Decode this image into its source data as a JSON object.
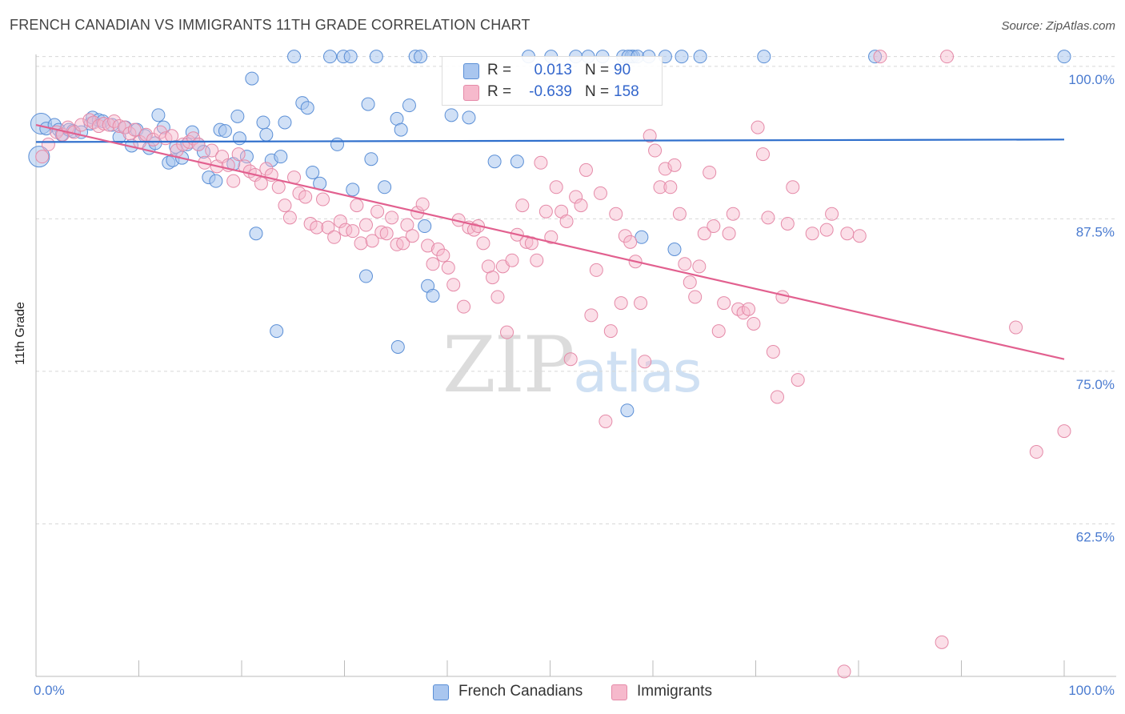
{
  "title": "FRENCH CANADIAN VS IMMIGRANTS 11TH GRADE CORRELATION CHART",
  "source": "Source: ZipAtlas.com",
  "watermark": {
    "zip": "ZIP",
    "atlas": "atlas"
  },
  "legend": {
    "rows": [
      {
        "r_label": "R =",
        "r_value": "0.013",
        "n_label": "N =",
        "n_value": "90"
      },
      {
        "r_label": "R =",
        "r_value": "-0.639",
        "n_label": "N =",
        "n_value": "158"
      }
    ]
  },
  "bottom_legend": [
    "French Canadians",
    "Immigrants"
  ],
  "colors": {
    "blue_fill": "#a9c6ef",
    "blue_stroke": "#5b8fd6",
    "blue_line": "#2f6fcc",
    "pink_fill": "#f6b9cc",
    "pink_stroke": "#e58aa8",
    "pink_line": "#e2608f",
    "tick_text": "#4a7bd0",
    "grid": "#d8d8d8"
  },
  "chart_data": {
    "type": "scatter",
    "title": "FRENCH CANADIAN VS IMMIGRANTS 11TH GRADE CORRELATION CHART",
    "xlabel": "",
    "ylabel": "11th Grade",
    "xlim": [
      0,
      100
    ],
    "ylim": [
      50,
      101.5
    ],
    "x_tick_labels": [
      "0.0%",
      "100.0%"
    ],
    "y_ticks": [
      100,
      87.5,
      75,
      62.5
    ],
    "y_tick_labels": [
      "100.0%",
      "87.5%",
      "75.0%",
      "62.5%"
    ],
    "grid": true,
    "legend_position": "top-center",
    "series": [
      {
        "name": "French Canadians",
        "R": 0.013,
        "N": 90,
        "trend": [
          [
            0,
            93.8
          ],
          [
            100,
            94.0
          ]
        ],
        "points": [
          [
            0.3,
            92.6
          ],
          [
            0.5,
            95.3
          ],
          [
            1,
            94.9
          ],
          [
            1.8,
            95.2
          ],
          [
            2.2,
            94.8
          ],
          [
            2.5,
            94.4
          ],
          [
            3.2,
            94.8
          ],
          [
            3.6,
            94.7
          ],
          [
            4.4,
            94.6
          ],
          [
            5.3,
            95.3
          ],
          [
            5.5,
            95.8
          ],
          [
            6.1,
            95.6
          ],
          [
            6.5,
            95.5
          ],
          [
            7.4,
            95.2
          ],
          [
            8.1,
            94.2
          ],
          [
            8.7,
            95.0
          ],
          [
            9.3,
            93.5
          ],
          [
            9.8,
            94.8
          ],
          [
            10.6,
            94.3
          ],
          [
            11,
            93.3
          ],
          [
            11.6,
            93.7
          ],
          [
            11.9,
            96.0
          ],
          [
            12.4,
            95.0
          ],
          [
            12.9,
            92.1
          ],
          [
            13.3,
            92.3
          ],
          [
            13.6,
            93.4
          ],
          [
            14.2,
            92.5
          ],
          [
            14.7,
            93.6
          ],
          [
            15.2,
            94.6
          ],
          [
            15.8,
            93.6
          ],
          [
            16.3,
            93.0
          ],
          [
            16.8,
            90.9
          ],
          [
            17.5,
            90.6
          ],
          [
            17.9,
            94.8
          ],
          [
            18.4,
            94.7
          ],
          [
            19.2,
            92.0
          ],
          [
            19.6,
            95.9
          ],
          [
            19.8,
            94.1
          ],
          [
            20.5,
            92.6
          ],
          [
            21,
            99.0
          ],
          [
            21.4,
            86.3
          ],
          [
            22.1,
            95.4
          ],
          [
            22.4,
            94.4
          ],
          [
            22.9,
            92.3
          ],
          [
            23.4,
            78.3
          ],
          [
            23.8,
            92.6
          ],
          [
            24.2,
            95.4
          ],
          [
            25.1,
            100.8
          ],
          [
            25.9,
            97.0
          ],
          [
            26.4,
            96.6
          ],
          [
            26.9,
            91.3
          ],
          [
            27.6,
            90.4
          ],
          [
            28.6,
            100.8
          ],
          [
            29.3,
            93.6
          ],
          [
            29.9,
            100.8
          ],
          [
            30.6,
            100.8
          ],
          [
            30.8,
            89.9
          ],
          [
            32.1,
            82.8
          ],
          [
            32.3,
            96.9
          ],
          [
            32.6,
            92.4
          ],
          [
            33.1,
            100.8
          ],
          [
            33.9,
            90.1
          ],
          [
            35.1,
            95.7
          ],
          [
            35.2,
            77.0
          ],
          [
            35.5,
            94.8
          ],
          [
            36.3,
            96.8
          ],
          [
            36.9,
            100.8
          ],
          [
            37.4,
            100.8
          ],
          [
            37.8,
            86.9
          ],
          [
            38.1,
            82.0
          ],
          [
            38.6,
            81.2
          ],
          [
            40.4,
            96.0
          ],
          [
            42.1,
            95.8
          ],
          [
            44.6,
            92.2
          ],
          [
            46.8,
            92.2
          ],
          [
            47.9,
            100.8
          ],
          [
            50.1,
            100.8
          ],
          [
            52.5,
            100.8
          ],
          [
            53.7,
            100.8
          ],
          [
            55.1,
            100.8
          ],
          [
            57.1,
            100.8
          ],
          [
            58.1,
            100.8
          ],
          [
            62.1,
            85.0
          ],
          [
            57.9,
            100.8
          ],
          [
            57.6,
            100.8
          ],
          [
            58.5,
            100.8
          ],
          [
            62.8,
            100.8
          ],
          [
            64.6,
            100.8
          ],
          [
            70.8,
            100.8
          ],
          [
            81.6,
            100.8
          ],
          [
            100,
            100.8
          ],
          [
            57.5,
            71.8
          ],
          [
            58.9,
            86.0
          ],
          [
            61.2,
            100.8
          ],
          [
            59.6,
            100.8
          ]
        ]
      },
      {
        "name": "Immigrants",
        "R": -0.639,
        "N": 158,
        "trend": [
          [
            0,
            95.2
          ],
          [
            100,
            76.0
          ]
        ],
        "points": [
          [
            0.6,
            92.6
          ],
          [
            1.2,
            93.6
          ],
          [
            2,
            94.6
          ],
          [
            2.6,
            94.4
          ],
          [
            3.1,
            95.0
          ],
          [
            3.7,
            94.6
          ],
          [
            4.4,
            95.2
          ],
          [
            5.2,
            95.6
          ],
          [
            5.6,
            95.4
          ],
          [
            6.1,
            95.1
          ],
          [
            6.6,
            95.3
          ],
          [
            7.1,
            95.2
          ],
          [
            7.6,
            95.5
          ],
          [
            8.1,
            95.1
          ],
          [
            8.6,
            95.0
          ],
          [
            9.1,
            94.5
          ],
          [
            9.6,
            94.8
          ],
          [
            10.1,
            93.8
          ],
          [
            10.7,
            94.4
          ],
          [
            11.4,
            94.0
          ],
          [
            12.1,
            94.6
          ],
          [
            12.6,
            94.1
          ],
          [
            13.2,
            94.3
          ],
          [
            13.7,
            93.1
          ],
          [
            14.3,
            93.6
          ],
          [
            14.9,
            93.8
          ],
          [
            15.3,
            94.1
          ],
          [
            15.8,
            93.6
          ],
          [
            16.4,
            92.1
          ],
          [
            17.1,
            93.1
          ],
          [
            17.6,
            91.8
          ],
          [
            18.1,
            92.6
          ],
          [
            18.7,
            91.9
          ],
          [
            19.2,
            90.6
          ],
          [
            19.7,
            92.8
          ],
          [
            20.3,
            91.8
          ],
          [
            20.8,
            91.4
          ],
          [
            21.3,
            91.1
          ],
          [
            21.9,
            90.4
          ],
          [
            22.4,
            91.6
          ],
          [
            22.9,
            91.1
          ],
          [
            23.6,
            90.1
          ],
          [
            24.2,
            88.6
          ],
          [
            24.7,
            87.6
          ],
          [
            25.1,
            90.9
          ],
          [
            25.6,
            89.6
          ],
          [
            26.2,
            89.3
          ],
          [
            26.7,
            87.1
          ],
          [
            27.3,
            86.8
          ],
          [
            27.9,
            89.1
          ],
          [
            28.4,
            86.8
          ],
          [
            29,
            86.0
          ],
          [
            29.6,
            87.3
          ],
          [
            30.1,
            86.6
          ],
          [
            30.8,
            86.5
          ],
          [
            31.2,
            88.6
          ],
          [
            31.6,
            85.5
          ],
          [
            32.1,
            87.0
          ],
          [
            32.7,
            85.7
          ],
          [
            33.2,
            88.1
          ],
          [
            33.6,
            86.4
          ],
          [
            34.1,
            86.3
          ],
          [
            34.6,
            87.6
          ],
          [
            35.1,
            85.4
          ],
          [
            35.7,
            85.5
          ],
          [
            36.1,
            87.0
          ],
          [
            36.6,
            86.1
          ],
          [
            37.1,
            88.0
          ],
          [
            37.6,
            88.7
          ],
          [
            38.1,
            85.3
          ],
          [
            38.6,
            83.8
          ],
          [
            39.1,
            85.0
          ],
          [
            39.6,
            84.5
          ],
          [
            40.1,
            83.5
          ],
          [
            40.6,
            82.1
          ],
          [
            41.1,
            87.4
          ],
          [
            41.6,
            80.3
          ],
          [
            42.1,
            86.8
          ],
          [
            42.6,
            86.6
          ],
          [
            43,
            86.9
          ],
          [
            43.5,
            85.5
          ],
          [
            44,
            83.6
          ],
          [
            44.4,
            82.7
          ],
          [
            44.9,
            81.1
          ],
          [
            45.4,
            83.6
          ],
          [
            45.8,
            78.2
          ],
          [
            46.3,
            84.1
          ],
          [
            46.8,
            86.2
          ],
          [
            47.3,
            88.6
          ],
          [
            47.7,
            85.6
          ],
          [
            48.2,
            85.5
          ],
          [
            48.7,
            84.1
          ],
          [
            49.1,
            92.1
          ],
          [
            49.6,
            88.1
          ],
          [
            50.1,
            86.0
          ],
          [
            50.6,
            90.1
          ],
          [
            51.1,
            88.1
          ],
          [
            51.6,
            87.3
          ],
          [
            52,
            76.0
          ],
          [
            52.5,
            89.3
          ],
          [
            53,
            88.6
          ],
          [
            53.5,
            91.5
          ],
          [
            54,
            79.6
          ],
          [
            54.5,
            83.3
          ],
          [
            54.9,
            89.6
          ],
          [
            55.4,
            70.9
          ],
          [
            55.9,
            78.3
          ],
          [
            56.4,
            87.9
          ],
          [
            56.9,
            80.6
          ],
          [
            57.3,
            86.1
          ],
          [
            57.8,
            85.6
          ],
          [
            58.3,
            84.0
          ],
          [
            58.8,
            80.6
          ],
          [
            59.2,
            75.8
          ],
          [
            59.7,
            94.3
          ],
          [
            60.2,
            93.1
          ],
          [
            60.7,
            90.1
          ],
          [
            61.2,
            91.6
          ],
          [
            61.7,
            90.1
          ],
          [
            62.1,
            91.9
          ],
          [
            62.6,
            87.9
          ],
          [
            63.1,
            83.8
          ],
          [
            63.6,
            82.3
          ],
          [
            64.1,
            81.1
          ],
          [
            64.5,
            83.6
          ],
          [
            65,
            86.3
          ],
          [
            65.5,
            91.3
          ],
          [
            65.9,
            86.9
          ],
          [
            66.4,
            78.3
          ],
          [
            66.9,
            80.6
          ],
          [
            67.4,
            86.3
          ],
          [
            67.8,
            87.9
          ],
          [
            68.3,
            80.1
          ],
          [
            68.8,
            79.8
          ],
          [
            69.3,
            80.1
          ],
          [
            69.8,
            78.9
          ],
          [
            70.2,
            95.0
          ],
          [
            70.7,
            92.8
          ],
          [
            71.2,
            87.6
          ],
          [
            71.7,
            76.6
          ],
          [
            72.1,
            72.9
          ],
          [
            72.6,
            81.1
          ],
          [
            73.1,
            87.1
          ],
          [
            73.6,
            90.1
          ],
          [
            74.1,
            74.3
          ],
          [
            75.5,
            86.3
          ],
          [
            78.9,
            86.3
          ],
          [
            80.1,
            86.1
          ],
          [
            82.1,
            100.8
          ],
          [
            88.6,
            100.8
          ],
          [
            97.3,
            68.4
          ],
          [
            100,
            70.1
          ],
          [
            88.1,
            52.8
          ],
          [
            78.6,
            50.4
          ],
          [
            95.3,
            78.6
          ],
          [
            76.9,
            86.6
          ],
          [
            77.4,
            87.9
          ]
        ]
      }
    ]
  }
}
